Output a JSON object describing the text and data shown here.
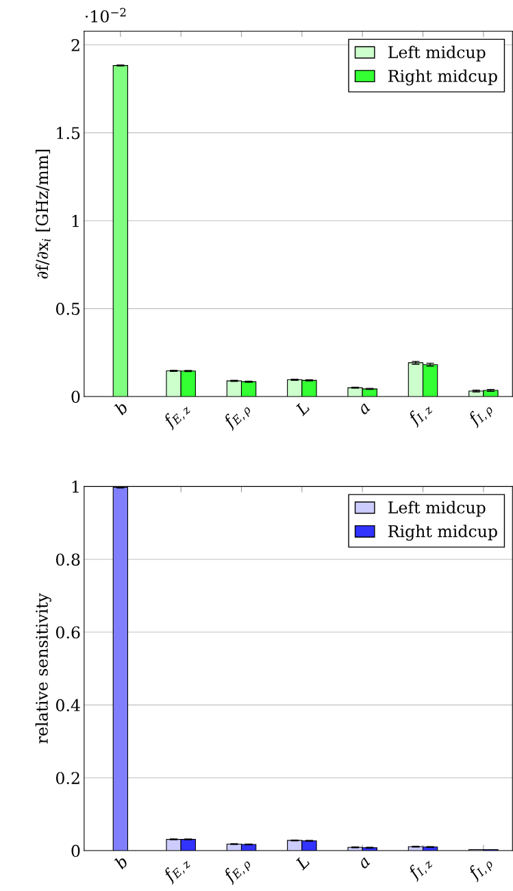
{
  "chart_data": [
    {
      "type": "bar",
      "ylabel": "∂f/∂x$_{i}$ [GHz/mm]",
      "annotations": [
        "·10$^{−2}$"
      ],
      "categories": [
        "b",
        "f$_{E,z}$",
        "f$_{E,ρ}$",
        "L",
        "a",
        "f$_{I,z}$",
        "f$_{I,ρ}$"
      ],
      "series": [
        {
          "color": "#80ff80",
          "values": [
            1.883,
            null,
            null,
            null,
            null,
            null,
            null
          ],
          "errors": [
            0.003,
            null,
            null,
            null,
            null,
            null,
            null
          ]
        },
        {
          "name": "Left midcup",
          "color": "#ccffcc",
          "values": [
            null,
            0.146,
            0.089,
            0.095,
            0.05,
            0.192,
            0.031
          ],
          "errors": [
            null,
            0.003,
            0.003,
            0.003,
            0.003,
            0.008,
            0.005
          ]
        },
        {
          "name": "Right midcup",
          "color": "#33ff33",
          "values": [
            null,
            0.145,
            0.084,
            0.092,
            0.043,
            0.181,
            0.035
          ],
          "errors": [
            null,
            0.003,
            0.003,
            0.003,
            0.003,
            0.008,
            0.005
          ]
        }
      ],
      "ylim": [
        0,
        2.078
      ],
      "yticks": [
        0,
        0.5,
        1,
        1.5,
        2
      ],
      "grid": "y",
      "legend": "top right"
    },
    {
      "type": "bar",
      "ylabel": "relative sensitivity",
      "categories": [
        "b",
        "f$_{E,z}$",
        "f$_{E,ρ}$",
        "L",
        "a",
        "f$_{I,z}$",
        "f$_{I,ρ}$"
      ],
      "series": [
        {
          "color": "#8080ff",
          "values": [
            0.998,
            null,
            null,
            null,
            null,
            null,
            null
          ],
          "errors": [
            0.002,
            null,
            null,
            null,
            null,
            null,
            null
          ]
        },
        {
          "name": "Left midcup",
          "color": "#ccccff",
          "values": [
            null,
            0.031,
            0.018,
            0.028,
            0.009,
            0.011,
            0.003
          ],
          "errors": [
            null,
            0.001,
            0.001,
            0.001,
            0.001,
            0.001,
            null
          ]
        },
        {
          "name": "Right midcup",
          "color": "#3333ff",
          "values": [
            null,
            0.031,
            0.017,
            0.027,
            0.008,
            0.01,
            0.003
          ],
          "errors": [
            null,
            0.001,
            0.001,
            0.001,
            0.001,
            0.001,
            null
          ]
        }
      ],
      "ylim": [
        0,
        1
      ],
      "yticks": [
        0,
        0.2,
        0.4,
        0.6,
        0.8,
        1
      ],
      "grid": "y",
      "legend": "top right"
    }
  ]
}
